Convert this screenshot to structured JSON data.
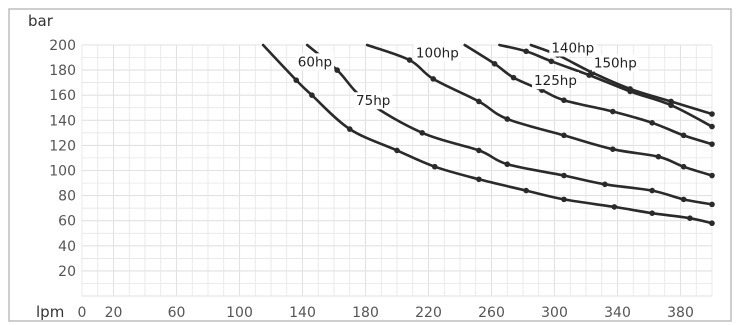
{
  "chart_data": {
    "type": "line",
    "title": "",
    "xlabel": "lpm",
    "ylabel": "bar",
    "xlim": [
      0,
      400
    ],
    "ylim": [
      0,
      200
    ],
    "x_ticks": [
      0,
      20,
      60,
      100,
      140,
      180,
      220,
      260,
      300,
      340,
      380
    ],
    "y_ticks": [
      20,
      40,
      60,
      80,
      100,
      120,
      140,
      160,
      180,
      200
    ],
    "grid": true,
    "colors": {
      "curve": "#2a2a2a",
      "grid": "#e2e2e2",
      "axis": "#555555",
      "label_bg": "#ffffff"
    },
    "series": [
      {
        "name": "60hp",
        "label_at": [
          137,
          183
        ],
        "points": [
          [
            115,
            200
          ],
          [
            136,
            172
          ],
          [
            146,
            160
          ],
          [
            170,
            133
          ],
          [
            200,
            116
          ],
          [
            224,
            103
          ],
          [
            252,
            93
          ],
          [
            282,
            84
          ],
          [
            306,
            77
          ],
          [
            338,
            71
          ],
          [
            362,
            66
          ],
          [
            386,
            62
          ],
          [
            400,
            58
          ]
        ]
      },
      {
        "name": "75hp",
        "label_at": [
          174,
          152
        ],
        "points": [
          [
            143,
            200
          ],
          [
            162,
            180
          ],
          [
            180,
            156
          ],
          [
            216,
            130
          ],
          [
            252,
            116
          ],
          [
            270,
            105
          ],
          [
            306,
            96
          ],
          [
            332,
            89
          ],
          [
            362,
            84
          ],
          [
            382,
            77
          ],
          [
            400,
            73
          ]
        ]
      },
      {
        "name": "100hp",
        "label_at": [
          212,
          190
        ],
        "points": [
          [
            181,
            200
          ],
          [
            208,
            188
          ],
          [
            223,
            173
          ],
          [
            252,
            155
          ],
          [
            270,
            141
          ],
          [
            306,
            128
          ],
          [
            337,
            117
          ],
          [
            366,
            111
          ],
          [
            382,
            103
          ],
          [
            400,
            96
          ]
        ]
      },
      {
        "name": "125hp",
        "label_at": [
          287,
          168
        ],
        "points": [
          [
            243,
            200
          ],
          [
            262,
            185
          ],
          [
            274,
            174
          ],
          [
            292,
            164
          ],
          [
            306,
            156
          ],
          [
            337,
            147
          ],
          [
            362,
            138
          ],
          [
            382,
            128
          ],
          [
            400,
            121
          ]
        ]
      },
      {
        "name": "140hp",
        "label_at": [
          298,
          194
        ],
        "points": [
          [
            265,
            200
          ],
          [
            282,
            195
          ],
          [
            298,
            187
          ],
          [
            322,
            176
          ],
          [
            348,
            163
          ],
          [
            374,
            152
          ],
          [
            400,
            135
          ]
        ]
      },
      {
        "name": "150hp",
        "label_at": [
          325,
          182
        ],
        "points": [
          [
            285,
            200
          ],
          [
            302,
            192
          ],
          [
            324,
            178
          ],
          [
            348,
            165
          ],
          [
            374,
            155
          ],
          [
            400,
            145
          ]
        ]
      }
    ]
  }
}
